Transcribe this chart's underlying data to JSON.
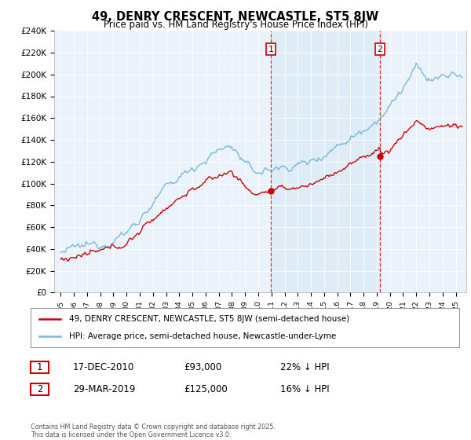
{
  "title": "49, DENRY CRESCENT, NEWCASTLE, ST5 8JW",
  "subtitle": "Price paid vs. HM Land Registry's House Price Index (HPI)",
  "legend_line1": "49, DENRY CRESCENT, NEWCASTLE, ST5 8JW (semi-detached house)",
  "legend_line2": "HPI: Average price, semi-detached house, Newcastle-under-Lyme",
  "annotation1_label": "1",
  "annotation1_date": "17-DEC-2010",
  "annotation1_price": "£93,000",
  "annotation1_hpi": "22% ↓ HPI",
  "annotation2_label": "2",
  "annotation2_date": "29-MAR-2019",
  "annotation2_price": "£125,000",
  "annotation2_hpi": "16% ↓ HPI",
  "footer": "Contains HM Land Registry data © Crown copyright and database right 2025.\nThis data is licensed under the Open Government Licence v3.0.",
  "hpi_color": "#7ab8e0",
  "price_color": "#cc0000",
  "vline_color": "#cc0000",
  "shade_color": "#daeaf7",
  "bg_color": "#eaf3fb",
  "ylim": [
    0,
    240000
  ],
  "yticks": [
    0,
    20000,
    40000,
    60000,
    80000,
    100000,
    120000,
    140000,
    160000,
    180000,
    200000,
    220000,
    240000
  ],
  "sale1_x": 2010.96,
  "sale1_y": 93000,
  "sale2_x": 2019.24,
  "sale2_y": 125000,
  "xmin": 1994.5,
  "xmax": 2025.8
}
